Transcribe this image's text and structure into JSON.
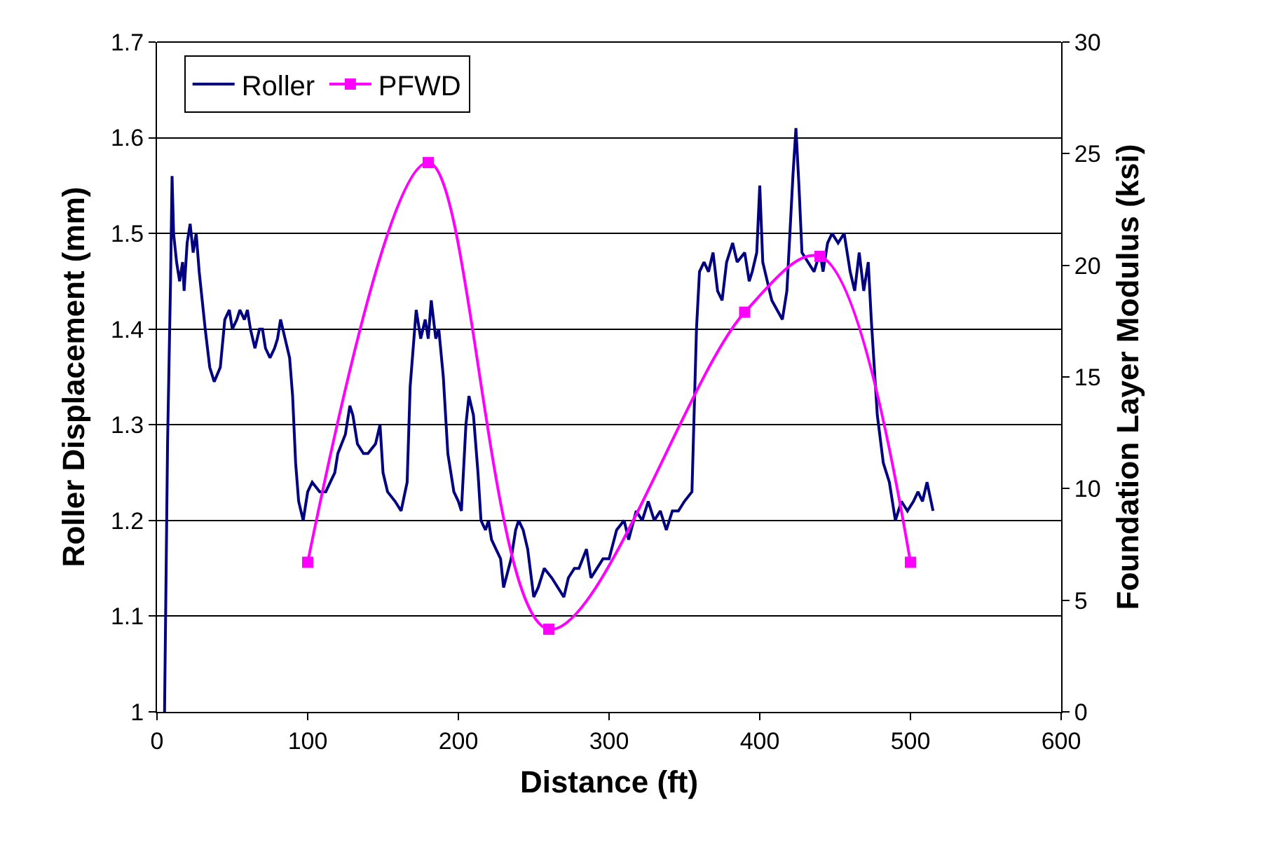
{
  "chart_data": {
    "type": "line",
    "xlabel": "Distance (ft)",
    "ylabel": "Roller Displacement (mm)",
    "y2label": "Foundation Layer Modulus (ksi)",
    "xlim": [
      0,
      600
    ],
    "xticks": [
      0,
      100,
      200,
      300,
      400,
      500,
      600
    ],
    "ylim": [
      1,
      1.7
    ],
    "yticks": [
      1,
      1.1,
      1.2,
      1.3,
      1.4,
      1.5,
      1.6,
      1.7
    ],
    "y2lim": [
      0,
      30
    ],
    "y2ticks": [
      0,
      5,
      10,
      15,
      20,
      25,
      30
    ],
    "grid": "y",
    "legend": "top left",
    "series": [
      {
        "name": "Roller",
        "color": "#000080",
        "marker": "none",
        "x": [
          5,
          7,
          9,
          10,
          11,
          13,
          15,
          17,
          18,
          20,
          22,
          24,
          26,
          28,
          30,
          32,
          35,
          38,
          42,
          45,
          48,
          50,
          53,
          55,
          58,
          60,
          62,
          65,
          68,
          70,
          72,
          75,
          78,
          80,
          82,
          85,
          88,
          90,
          92,
          94,
          97,
          100,
          103,
          108,
          112,
          115,
          118,
          120,
          125,
          128,
          130,
          133,
          137,
          140,
          145,
          148,
          150,
          153,
          158,
          162,
          166,
          168,
          172,
          175,
          178,
          180,
          182,
          185,
          187,
          190,
          193,
          197,
          200,
          202,
          205,
          207,
          210,
          213,
          215,
          218,
          220,
          222,
          225,
          228,
          230,
          235,
          238,
          240,
          243,
          246,
          250,
          253,
          257,
          262,
          266,
          270,
          273,
          277,
          280,
          285,
          288,
          292,
          296,
          300,
          305,
          310,
          313,
          318,
          322,
          326,
          330,
          334,
          338,
          342,
          346,
          350,
          355,
          358,
          360,
          363,
          366,
          369,
          372,
          375,
          378,
          382,
          385,
          390,
          393,
          395,
          398,
          400,
          402,
          408,
          415,
          418,
          422,
          424,
          426,
          428,
          432,
          436,
          440,
          442,
          445,
          448,
          452,
          456,
          460,
          463,
          466,
          469,
          472,
          474,
          478,
          482,
          486,
          490,
          494,
          498,
          502,
          505,
          508,
          511,
          515
        ],
        "values": [
          1.0,
          1.28,
          1.45,
          1.56,
          1.5,
          1.47,
          1.45,
          1.47,
          1.44,
          1.49,
          1.51,
          1.48,
          1.5,
          1.46,
          1.43,
          1.4,
          1.36,
          1.345,
          1.36,
          1.41,
          1.42,
          1.4,
          1.41,
          1.42,
          1.41,
          1.42,
          1.4,
          1.38,
          1.4,
          1.4,
          1.38,
          1.37,
          1.38,
          1.39,
          1.41,
          1.39,
          1.37,
          1.33,
          1.26,
          1.22,
          1.2,
          1.23,
          1.24,
          1.23,
          1.23,
          1.24,
          1.25,
          1.27,
          1.29,
          1.32,
          1.31,
          1.28,
          1.27,
          1.27,
          1.28,
          1.3,
          1.25,
          1.23,
          1.22,
          1.21,
          1.24,
          1.34,
          1.42,
          1.39,
          1.41,
          1.39,
          1.43,
          1.39,
          1.4,
          1.35,
          1.27,
          1.23,
          1.22,
          1.21,
          1.3,
          1.33,
          1.31,
          1.25,
          1.2,
          1.19,
          1.2,
          1.18,
          1.17,
          1.16,
          1.13,
          1.16,
          1.19,
          1.2,
          1.19,
          1.17,
          1.12,
          1.13,
          1.15,
          1.14,
          1.13,
          1.12,
          1.14,
          1.15,
          1.15,
          1.17,
          1.14,
          1.15,
          1.16,
          1.16,
          1.19,
          1.2,
          1.18,
          1.21,
          1.2,
          1.22,
          1.2,
          1.21,
          1.19,
          1.21,
          1.21,
          1.22,
          1.23,
          1.4,
          1.46,
          1.47,
          1.46,
          1.48,
          1.44,
          1.43,
          1.47,
          1.49,
          1.47,
          1.48,
          1.45,
          1.46,
          1.48,
          1.55,
          1.47,
          1.43,
          1.41,
          1.44,
          1.56,
          1.61,
          1.55,
          1.48,
          1.47,
          1.46,
          1.48,
          1.46,
          1.49,
          1.5,
          1.49,
          1.5,
          1.46,
          1.44,
          1.48,
          1.44,
          1.47,
          1.41,
          1.31,
          1.26,
          1.24,
          1.2,
          1.22,
          1.21,
          1.22,
          1.23,
          1.22,
          1.24,
          1.21
        ]
      },
      {
        "name": "PFWD",
        "color": "#ff00ff",
        "marker": "square",
        "axis": "y2",
        "x": [
          100,
          180,
          260,
          390,
          440,
          500
        ],
        "values": [
          6.7,
          24.6,
          3.7,
          17.9,
          20.4,
          6.7
        ]
      }
    ]
  }
}
